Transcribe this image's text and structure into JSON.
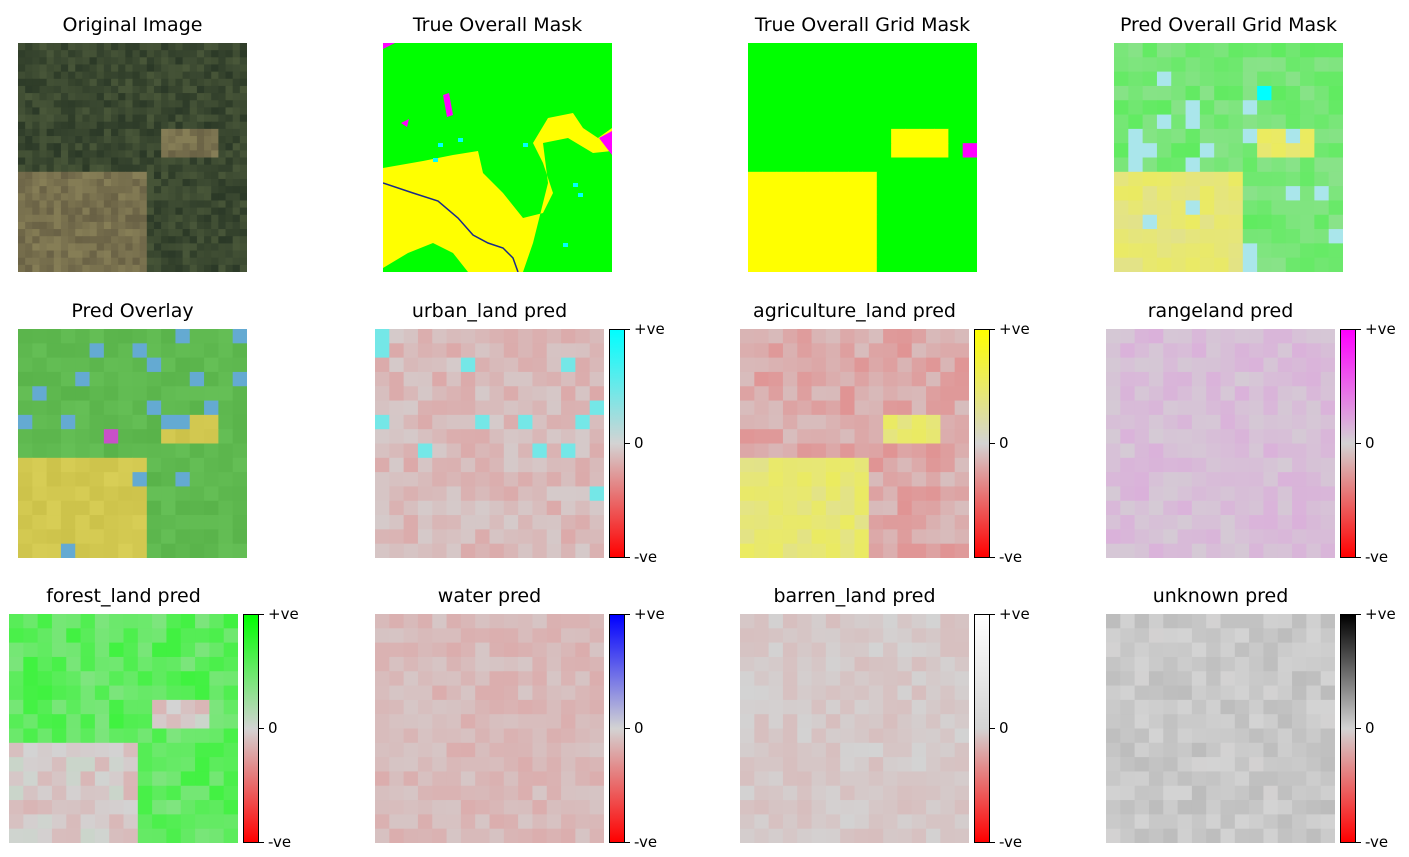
{
  "chart_data": {
    "type": "heatmap",
    "grid_size": 16,
    "panels": [
      {
        "id": "original",
        "title": "Original Image",
        "kind": "satellite"
      },
      {
        "id": "true_mask",
        "title": "True Overall Mask",
        "kind": "mask"
      },
      {
        "id": "true_grid",
        "title": "True Overall Grid Mask",
        "kind": "grid_mask"
      },
      {
        "id": "pred_grid",
        "title": "Pred Overall Grid Mask",
        "kind": "pred_grid"
      },
      {
        "id": "overlay",
        "title": "Pred Overlay",
        "kind": "overlay"
      },
      {
        "id": "urban",
        "title": "urban_land pred",
        "kind": "class_pred",
        "color": "#00ffff",
        "bias": -0.12,
        "spread": 0.08
      },
      {
        "id": "agri",
        "title": "agriculture_land pred",
        "kind": "class_pred",
        "color": "#ffff00",
        "bias": -0.1,
        "spread": 0.25
      },
      {
        "id": "range",
        "title": "rangeland pred",
        "kind": "class_pred",
        "color": "#ff00ff",
        "bias": 0.1,
        "spread": 0.06
      },
      {
        "id": "forest",
        "title": "forest_land pred",
        "kind": "class_pred",
        "color": "#00ff00",
        "bias": 0.35,
        "spread": 0.25
      },
      {
        "id": "water",
        "title": "water pred",
        "kind": "class_pred",
        "color": "#0000ff",
        "bias": -0.12,
        "spread": 0.06
      },
      {
        "id": "barren",
        "title": "barren_land pred",
        "kind": "class_pred",
        "color": "#ffffff",
        "bias": -0.05,
        "spread": 0.05
      },
      {
        "id": "unknown",
        "title": "unknown pred",
        "kind": "class_pred",
        "color": "#000000",
        "bias": 0.05,
        "spread": 0.06
      }
    ],
    "colorbar": {
      "top": "+ve",
      "mid": "0",
      "bottom": "-ve",
      "negative_color": "#ff0000",
      "zero_color": "#d3d3d3"
    },
    "class_colors": {
      "urban_land": "#00ffff",
      "agriculture_land": "#ffff00",
      "rangeland": "#ff00ff",
      "forest_land": "#00ff00",
      "water": "#0000ff",
      "barren_land": "#ffffff",
      "unknown": "#000000"
    }
  }
}
